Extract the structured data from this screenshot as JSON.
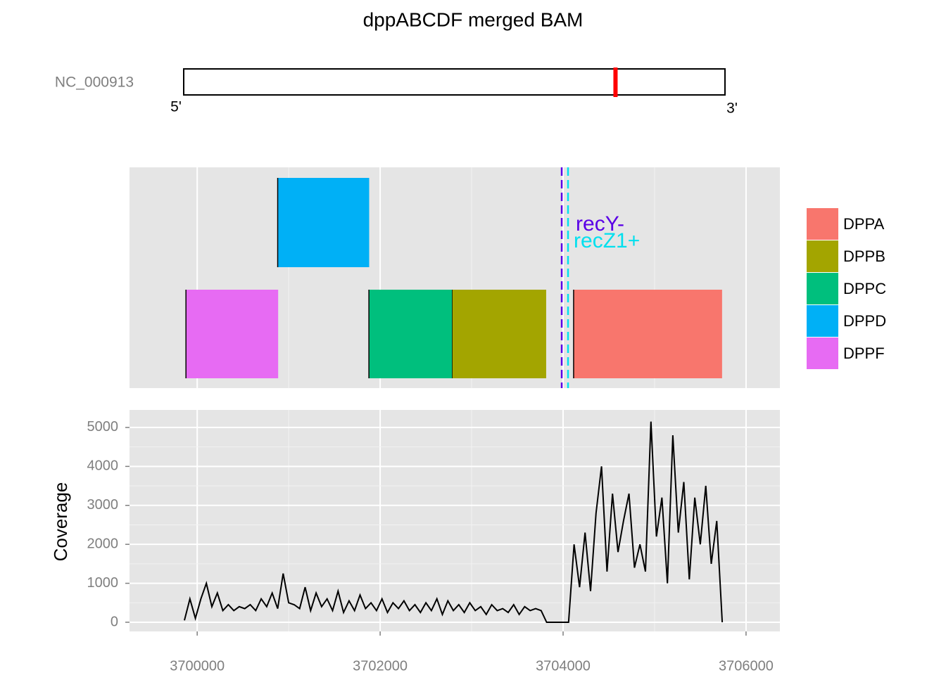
{
  "chart_data": {
    "type": "coverage_track",
    "title": "dppABCDF merged BAM",
    "ideogram": {
      "label": "NC_000913",
      "length": 4641652,
      "left_label": "5'",
      "right_label": "3'",
      "highlight_color": "#ff0000"
    },
    "series": [
      {
        "name": "DPPA",
        "color": "#F8766D",
        "start": 3704115,
        "end": 3705738
      },
      {
        "name": "DPPB",
        "color": "#A3A500",
        "start": 3702785,
        "end": 3703815
      },
      {
        "name": "DPPC",
        "color": "#00BF7D",
        "start": 3701877,
        "end": 3702785
      },
      {
        "name": "DPPD",
        "color": "#00B0F6",
        "start": 3700880,
        "end": 3701880
      },
      {
        "name": "DPPF",
        "color": "#E76BF3",
        "start": 3699877,
        "end": 3700885
      }
    ],
    "markers": [
      {
        "label": "recY-",
        "position": 3703985,
        "color": "#5a00e6"
      },
      {
        "label": "recZ1+",
        "position": 3704054,
        "color": "#00e0ee"
      }
    ],
    "coverage": {
      "y_label": "Coverage",
      "color": "#000000",
      "x": [
        3699860,
        3699920,
        3699980,
        3700040,
        3700100,
        3700160,
        3700220,
        3700280,
        3700340,
        3700400,
        3700460,
        3700520,
        3700580,
        3700640,
        3700700,
        3700760,
        3700820,
        3700880,
        3700940,
        3701000,
        3701060,
        3701120,
        3701180,
        3701240,
        3701300,
        3701360,
        3701420,
        3701480,
        3701540,
        3701600,
        3701660,
        3701720,
        3701780,
        3701840,
        3701900,
        3701960,
        3702020,
        3702080,
        3702140,
        3702200,
        3702260,
        3702320,
        3702380,
        3702440,
        3702500,
        3702560,
        3702620,
        3702680,
        3702740,
        3702800,
        3702860,
        3702920,
        3702980,
        3703040,
        3703100,
        3703160,
        3703220,
        3703280,
        3703340,
        3703400,
        3703460,
        3703520,
        3703580,
        3703640,
        3703700,
        3703760,
        3703820,
        3703880,
        3703940,
        3704000,
        3704060,
        3704120,
        3704180,
        3704240,
        3704300,
        3704360,
        3704420,
        3704480,
        3704540,
        3704600,
        3704660,
        3704720,
        3704780,
        3704840,
        3704900,
        3704960,
        3705020,
        3705080,
        3705140,
        3705200,
        3705260,
        3705320,
        3705380,
        3705440,
        3705500,
        3705560,
        3705620,
        3705680,
        3705740
      ],
      "values": [
        50,
        600,
        100,
        600,
        1000,
        400,
        750,
        300,
        450,
        300,
        400,
        350,
        450,
        300,
        600,
        400,
        750,
        350,
        1250,
        500,
        450,
        350,
        900,
        300,
        750,
        400,
        600,
        300,
        800,
        250,
        550,
        300,
        700,
        350,
        500,
        300,
        600,
        250,
        500,
        350,
        550,
        300,
        450,
        250,
        500,
        300,
        600,
        200,
        550,
        300,
        450,
        250,
        500,
        300,
        400,
        200,
        450,
        300,
        350,
        250,
        450,
        200,
        400,
        300,
        350,
        300,
        0,
        0,
        0,
        0,
        0,
        2000,
        900,
        2300,
        800,
        2800,
        4000,
        1300,
        3300,
        1800,
        2600,
        3300,
        1400,
        2000,
        1300,
        5150,
        2200,
        3200,
        1000,
        4800,
        2300,
        3600,
        1100,
        3200,
        2000,
        3500,
        1500,
        2600,
        0
      ],
      "ylim": [
        -235,
        5450
      ],
      "yticks": [
        0,
        1000,
        2000,
        3000,
        4000,
        5000
      ]
    },
    "xlim": [
      3699260,
      3706370
    ],
    "xticks": [
      3700000,
      3702000,
      3704000,
      3706000
    ],
    "grid": true
  }
}
